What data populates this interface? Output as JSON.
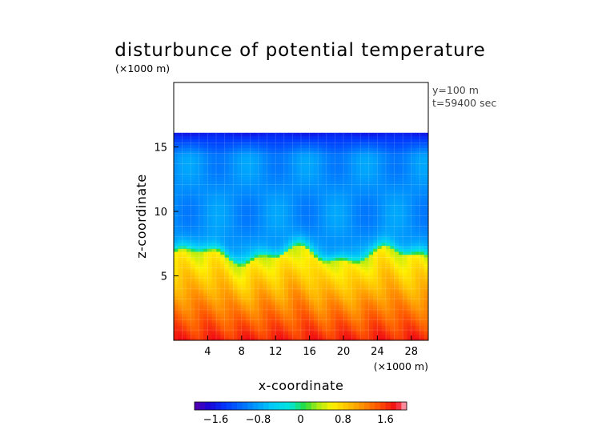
{
  "chart_data": {
    "type": "heatmap",
    "title": "disturbunce of potential temperature",
    "ylabel": "z-coordinate",
    "xlabel": "x-coordinate",
    "x_unit_label": "(×1000 m)",
    "y_unit_label": "(×1000 m)",
    "info": [
      "y=100 m",
      "t=59400 sec"
    ],
    "xlim": [
      0,
      30
    ],
    "ylim": [
      0,
      20
    ],
    "x_ticks": [
      4,
      8,
      12,
      16,
      20,
      24,
      28
    ],
    "y_ticks": [
      5,
      10,
      15
    ],
    "x_tick_labels": [
      "4",
      "8",
      "12",
      "16",
      "20",
      "24",
      "28"
    ],
    "y_tick_labels": [
      "5",
      "10",
      "15"
    ],
    "data_top_z": 16.1,
    "colorbar": {
      "min": -2.0,
      "max": 2.0,
      "ticks": [
        -1.6,
        -0.8,
        0,
        0.8,
        1.6
      ],
      "tick_labels": [
        "−1.6",
        "−0.8",
        "0",
        "0.8",
        "1.6"
      ]
    },
    "field_description": {
      "surface_value": 1.7,
      "lower_layer_value_near_z6": 0.5,
      "transition_z": 6.5,
      "upper_layer_value": -0.9,
      "top_value": -1.6
    },
    "grid": true
  }
}
